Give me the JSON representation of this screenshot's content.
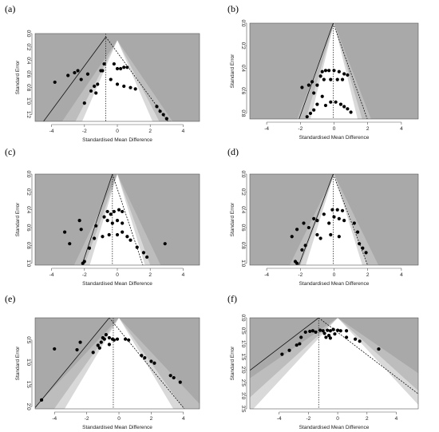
{
  "chart_data": [
    {
      "type": "scatter",
      "panel_label": "(a)",
      "xlabel": "Standardised Mean Difference",
      "ylabel": "Standard Error",
      "xlim": [
        -5,
        5
      ],
      "ylim": [
        0,
        1.3
      ],
      "y_inverted": true,
      "xticks": [
        -4,
        -2,
        0,
        2,
        4
      ],
      "yticks": [
        0.0,
        0.2,
        0.4,
        0.6,
        0.8,
        1.0,
        1.2
      ],
      "ytick_labels": [
        "0.0",
        "0.2",
        "0.4",
        "0.6",
        "0.8",
        "1.0",
        "1.2"
      ],
      "funnel_apex": 0.1,
      "estimate_line": -0.7,
      "regression_line": {
        "apex": [
          -0.7,
          0.05
        ],
        "slope_se_per_unit": 0.33
      },
      "points": [
        {
          "x": -3.8,
          "y": 0.72
        },
        {
          "x": -3.0,
          "y": 0.62
        },
        {
          "x": -2.6,
          "y": 0.58
        },
        {
          "x": -2.4,
          "y": 0.55
        },
        {
          "x": -2.2,
          "y": 0.68
        },
        {
          "x": -1.8,
          "y": 0.6
        },
        {
          "x": -1.6,
          "y": 0.85
        },
        {
          "x": -1.4,
          "y": 0.78
        },
        {
          "x": -1.2,
          "y": 0.75
        },
        {
          "x": -1.0,
          "y": 0.55
        },
        {
          "x": -0.9,
          "y": 0.55
        },
        {
          "x": -0.8,
          "y": 0.45
        },
        {
          "x": -1.3,
          "y": 0.88
        },
        {
          "x": -2.0,
          "y": 1.03
        },
        {
          "x": -0.2,
          "y": 0.45
        },
        {
          "x": 0.0,
          "y": 0.52
        },
        {
          "x": 0.2,
          "y": 0.52
        },
        {
          "x": 0.4,
          "y": 0.5
        },
        {
          "x": 0.6,
          "y": 0.5
        },
        {
          "x": -0.4,
          "y": 0.68
        },
        {
          "x": 0.0,
          "y": 0.75
        },
        {
          "x": 0.4,
          "y": 0.78
        },
        {
          "x": 0.8,
          "y": 0.8
        },
        {
          "x": 1.1,
          "y": 0.82
        },
        {
          "x": 2.4,
          "y": 1.08
        },
        {
          "x": 2.6,
          "y": 1.15
        },
        {
          "x": 2.8,
          "y": 1.2
        },
        {
          "x": 3.0,
          "y": 1.26
        },
        {
          "x": 3.2,
          "y": 1.32
        }
      ]
    },
    {
      "type": "scatter",
      "panel_label": "(b)",
      "xlabel": "Standardised Mean Difference",
      "ylabel": "Standard Error",
      "xlim": [
        -5,
        5
      ],
      "ylim": [
        0,
        0.85
      ],
      "y_inverted": true,
      "xticks": [
        -4,
        -2,
        0,
        2,
        4
      ],
      "yticks": [
        0.0,
        0.2,
        0.4,
        0.6,
        0.8
      ],
      "ytick_labels": [
        "0.0",
        "0.2",
        "0.4",
        "0.6",
        "0.8"
      ],
      "funnel_apex": 0.0,
      "estimate_line": -0.05,
      "regression_line": {
        "apex": [
          -0.05,
          0.0
        ],
        "slope_se_per_unit": 0.42
      },
      "points": [
        {
          "x": -1.9,
          "y": 0.57
        },
        {
          "x": -1.5,
          "y": 0.55
        },
        {
          "x": -1.3,
          "y": 0.52
        },
        {
          "x": -1.2,
          "y": 0.62
        },
        {
          "x": -1.0,
          "y": 0.55
        },
        {
          "x": -0.8,
          "y": 0.47
        },
        {
          "x": -0.7,
          "y": 0.43
        },
        {
          "x": -0.5,
          "y": 0.42
        },
        {
          "x": -0.3,
          "y": 0.42
        },
        {
          "x": 0.0,
          "y": 0.42
        },
        {
          "x": 0.3,
          "y": 0.43
        },
        {
          "x": 0.6,
          "y": 0.45
        },
        {
          "x": 0.8,
          "y": 0.46
        },
        {
          "x": -0.6,
          "y": 0.5
        },
        {
          "x": -0.2,
          "y": 0.5
        },
        {
          "x": 0.2,
          "y": 0.5
        },
        {
          "x": 0.5,
          "y": 0.5
        },
        {
          "x": -1.4,
          "y": 0.8
        },
        {
          "x": -1.2,
          "y": 0.77
        },
        {
          "x": -1.0,
          "y": 0.72
        },
        {
          "x": -0.5,
          "y": 0.73
        },
        {
          "x": -0.2,
          "y": 0.7
        },
        {
          "x": 0.1,
          "y": 0.7
        },
        {
          "x": 0.4,
          "y": 0.72
        },
        {
          "x": 0.6,
          "y": 0.74
        },
        {
          "x": 0.8,
          "y": 0.76
        },
        {
          "x": 1.0,
          "y": 0.79
        },
        {
          "x": -1.6,
          "y": 0.83
        },
        {
          "x": -0.7,
          "y": 0.65
        }
      ]
    },
    {
      "type": "scatter",
      "panel_label": "(c)",
      "xlabel": "Standardised Mean Difference",
      "ylabel": "Standard Error",
      "xlim": [
        -5,
        5
      ],
      "ylim": [
        0,
        1.02
      ],
      "y_inverted": true,
      "xticks": [
        -4,
        -2,
        0,
        2,
        4
      ],
      "yticks": [
        0.0,
        0.2,
        0.4,
        0.6,
        0.8,
        1.0
      ],
      "ytick_labels": [
        "0.0",
        "0.2",
        "0.4",
        "0.6",
        "0.8",
        "1.0"
      ],
      "funnel_apex": 0.0,
      "estimate_line": -0.3,
      "regression_line": {
        "apex": [
          -0.3,
          0.0
        ],
        "slope_se_per_unit": 0.55
      },
      "points": [
        {
          "x": -3.2,
          "y": 0.65
        },
        {
          "x": -2.9,
          "y": 0.78
        },
        {
          "x": -2.3,
          "y": 0.52
        },
        {
          "x": -2.2,
          "y": 0.62
        },
        {
          "x": -1.7,
          "y": 0.83
        },
        {
          "x": -2.0,
          "y": 0.98
        },
        {
          "x": -2.1,
          "y": 1.0
        },
        {
          "x": -1.4,
          "y": 0.72
        },
        {
          "x": -1.3,
          "y": 0.58
        },
        {
          "x": -0.8,
          "y": 0.48
        },
        {
          "x": -0.6,
          "y": 0.42
        },
        {
          "x": -0.4,
          "y": 0.45
        },
        {
          "x": -0.2,
          "y": 0.42
        },
        {
          "x": 0.1,
          "y": 0.4
        },
        {
          "x": 0.3,
          "y": 0.42
        },
        {
          "x": -0.6,
          "y": 0.52
        },
        {
          "x": -0.3,
          "y": 0.55
        },
        {
          "x": 0.0,
          "y": 0.52
        },
        {
          "x": 0.3,
          "y": 0.55
        },
        {
          "x": -0.9,
          "y": 0.7
        },
        {
          "x": -0.5,
          "y": 0.68
        },
        {
          "x": 0.0,
          "y": 0.68
        },
        {
          "x": 0.3,
          "y": 0.65
        },
        {
          "x": 0.6,
          "y": 0.7
        },
        {
          "x": 0.8,
          "y": 0.74
        },
        {
          "x": 1.2,
          "y": 0.82
        },
        {
          "x": 1.6,
          "y": 0.88
        },
        {
          "x": 1.8,
          "y": 0.93
        },
        {
          "x": 2.9,
          "y": 0.78
        }
      ]
    },
    {
      "type": "scatter",
      "panel_label": "(d)",
      "xlabel": "Standardised Mean Difference",
      "ylabel": "Standard Error",
      "xlim": [
        -5,
        5
      ],
      "ylim": [
        0,
        1.02
      ],
      "y_inverted": true,
      "xticks": [
        -4,
        -2,
        0,
        2,
        4
      ],
      "yticks": [
        0.0,
        0.2,
        0.4,
        0.6,
        0.8,
        1.0
      ],
      "ytick_labels": [
        "0.0",
        "0.2",
        "0.4",
        "0.6",
        "0.8",
        "1.0"
      ],
      "funnel_apex": 0.0,
      "estimate_line": -0.05,
      "regression_line": {
        "apex": [
          -0.05,
          0.0
        ],
        "slope_se_per_unit": 0.5
      },
      "points": [
        {
          "x": -2.5,
          "y": 0.7
        },
        {
          "x": -2.2,
          "y": 0.62
        },
        {
          "x": -2.3,
          "y": 0.98
        },
        {
          "x": -2.2,
          "y": 1.0
        },
        {
          "x": -1.9,
          "y": 0.85
        },
        {
          "x": -1.7,
          "y": 0.8
        },
        {
          "x": -1.8,
          "y": 0.55
        },
        {
          "x": -1.5,
          "y": 0.6
        },
        {
          "x": -1.2,
          "y": 0.5
        },
        {
          "x": -1.0,
          "y": 0.52
        },
        {
          "x": -0.6,
          "y": 0.45
        },
        {
          "x": -1.0,
          "y": 0.68
        },
        {
          "x": -0.8,
          "y": 0.72
        },
        {
          "x": -0.2,
          "y": 0.68
        },
        {
          "x": 0.3,
          "y": 0.7
        },
        {
          "x": -0.1,
          "y": 0.4
        },
        {
          "x": 0.2,
          "y": 0.4
        },
        {
          "x": 0.5,
          "y": 0.41
        },
        {
          "x": 0.0,
          "y": 0.48
        },
        {
          "x": 0.3,
          "y": 0.5
        },
        {
          "x": 0.6,
          "y": 0.52
        },
        {
          "x": 1.2,
          "y": 0.55
        },
        {
          "x": 1.4,
          "y": 0.65
        },
        {
          "x": 1.5,
          "y": 0.78
        },
        {
          "x": 1.7,
          "y": 0.83
        },
        {
          "x": 1.9,
          "y": 0.88
        },
        {
          "x": -0.3,
          "y": 0.55
        }
      ]
    },
    {
      "type": "scatter",
      "panel_label": "(e)",
      "xlabel": "Standardised Mean Difference",
      "ylabel": "Standard Error",
      "xlim": [
        -5.2,
        5
      ],
      "ylim": [
        0,
        2.05
      ],
      "y_inverted": true,
      "xticks": [
        -4,
        -2,
        0,
        2,
        4
      ],
      "yticks": [
        0.5,
        1.0,
        1.5,
        2.0
      ],
      "ytick_labels": [
        "0.5",
        "1.0",
        "1.5",
        "2.0"
      ],
      "funnel_apex": 0.0,
      "estimate_line": -0.35,
      "regression_line": {
        "apex": [
          -0.6,
          0.0
        ],
        "slope_se_per_unit": 0.44
      },
      "points": [
        {
          "x": -4.8,
          "y": 1.85
        },
        {
          "x": -4.0,
          "y": 0.7
        },
        {
          "x": -2.6,
          "y": 0.72
        },
        {
          "x": -2.4,
          "y": 0.55
        },
        {
          "x": -1.6,
          "y": 0.78
        },
        {
          "x": -1.3,
          "y": 0.62
        },
        {
          "x": -1.1,
          "y": 0.55
        },
        {
          "x": -1.0,
          "y": 0.45
        },
        {
          "x": -0.9,
          "y": 0.48
        },
        {
          "x": -0.8,
          "y": 0.38
        },
        {
          "x": -0.6,
          "y": 0.45
        },
        {
          "x": -0.4,
          "y": 0.48
        },
        {
          "x": -0.3,
          "y": 0.5
        },
        {
          "x": -0.1,
          "y": 0.48
        },
        {
          "x": -1.2,
          "y": 0.68
        },
        {
          "x": -0.6,
          "y": 0.6
        },
        {
          "x": 0.4,
          "y": 0.48
        },
        {
          "x": 0.6,
          "y": 0.5
        },
        {
          "x": 1.4,
          "y": 0.85
        },
        {
          "x": 1.6,
          "y": 0.9
        },
        {
          "x": 2.0,
          "y": 0.98
        },
        {
          "x": 2.2,
          "y": 1.02
        },
        {
          "x": 3.2,
          "y": 1.3
        },
        {
          "x": 3.4,
          "y": 1.35
        },
        {
          "x": 3.8,
          "y": 1.45
        }
      ]
    },
    {
      "type": "scatter",
      "panel_label": "(f)",
      "xlabel": "Standardised Mean Difference",
      "ylabel": "Standard Error",
      "xlim": [
        -6,
        5.5
      ],
      "ylim": [
        0,
        3.5
      ],
      "y_inverted": true,
      "xticks": [
        -4,
        -2,
        0,
        2,
        4
      ],
      "yticks": [
        0.0,
        0.5,
        1.0,
        1.5,
        2.0,
        2.5,
        3.0,
        3.5
      ],
      "ytick_labels": [
        "0.0",
        "0.5",
        "1.0",
        "1.5",
        "2.0",
        "2.5",
        "3.0",
        "3.5"
      ],
      "funnel_apex": 0.0,
      "estimate_line": -1.3,
      "regression_line": {
        "apex": [
          -1.3,
          0.0
        ],
        "slope_se_per_unit": 0.43
      },
      "points": [
        {
          "x": -3.8,
          "y": 1.4
        },
        {
          "x": -3.3,
          "y": 1.25
        },
        {
          "x": -2.8,
          "y": 1.05
        },
        {
          "x": -2.6,
          "y": 1.0
        },
        {
          "x": -2.5,
          "y": 0.75
        },
        {
          "x": -2.2,
          "y": 0.55
        },
        {
          "x": -1.9,
          "y": 0.52
        },
        {
          "x": -1.7,
          "y": 0.5
        },
        {
          "x": -1.5,
          "y": 0.55
        },
        {
          "x": -1.2,
          "y": 0.48
        },
        {
          "x": -1.0,
          "y": 0.5
        },
        {
          "x": -0.7,
          "y": 0.48
        },
        {
          "x": -0.5,
          "y": 0.5
        },
        {
          "x": -0.3,
          "y": 0.45
        },
        {
          "x": 0.0,
          "y": 0.48
        },
        {
          "x": 0.2,
          "y": 0.5
        },
        {
          "x": 0.6,
          "y": 0.5
        },
        {
          "x": -0.9,
          "y": 0.6
        },
        {
          "x": -0.6,
          "y": 0.68
        },
        {
          "x": -0.2,
          "y": 0.62
        },
        {
          "x": -0.8,
          "y": 0.75
        },
        {
          "x": -0.5,
          "y": 0.78
        },
        {
          "x": 0.6,
          "y": 0.75
        },
        {
          "x": 1.2,
          "y": 0.82
        },
        {
          "x": 1.5,
          "y": 0.9
        },
        {
          "x": 2.8,
          "y": 1.2
        }
      ]
    }
  ],
  "colors": {
    "panel_background": "#a9a9a9",
    "funnel_outer": "#bdbdbd",
    "funnel_middle": "#d9d9d9",
    "funnel_inner": "#ffffff",
    "points": "#000000",
    "lines": "#111111",
    "axis": "#555555"
  }
}
